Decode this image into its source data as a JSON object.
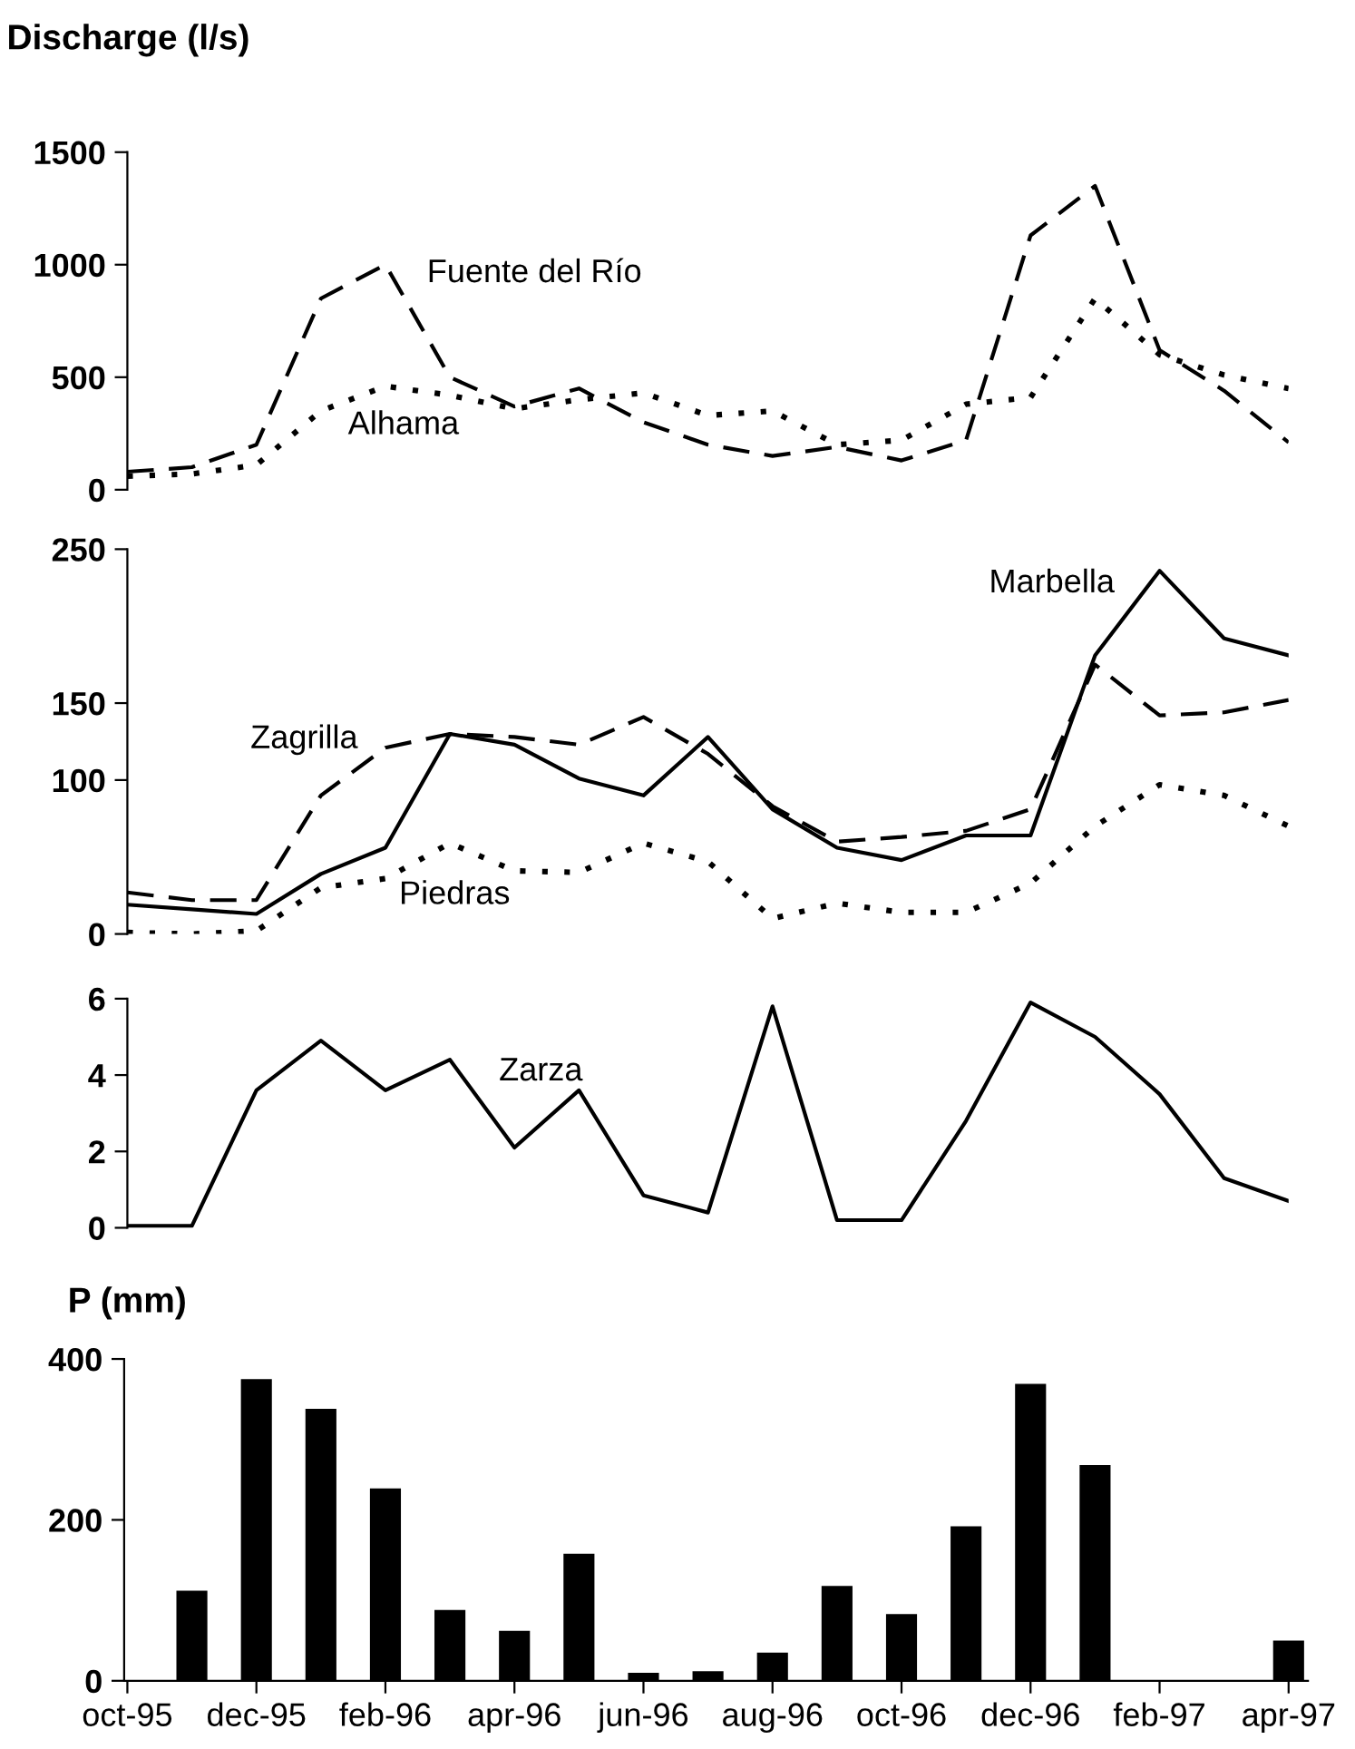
{
  "chart_data": [
    {
      "type": "line",
      "ylabel": "Discharge (l/s)",
      "categories": [
        null,
        null,
        null,
        null,
        null,
        null,
        null,
        null,
        null,
        null,
        null,
        null,
        null,
        null,
        null,
        null,
        null,
        null,
        null
      ],
      "ylim": [
        0,
        1500
      ],
      "yticks": [
        0,
        500,
        1000,
        1500
      ],
      "tick_labels": "y",
      "legend": false,
      "grid": false,
      "marker": "none",
      "series": [
        {
          "name": "Fuente del Río",
          "color": "#000000",
          "line_style": "dashed",
          "values": [
            80,
            100,
            200,
            850,
            1000,
            500,
            370,
            450,
            300,
            200,
            150,
            190,
            130,
            220,
            1130,
            1350,
            620,
            440,
            210
          ]
        },
        {
          "name": "Alhama",
          "color": "#000000",
          "line_style": "dotted",
          "values": [
            60,
            70,
            110,
            350,
            460,
            420,
            360,
            400,
            430,
            330,
            350,
            200,
            220,
            380,
            410,
            850,
            600,
            510,
            450
          ]
        }
      ]
    },
    {
      "type": "line",
      "categories": [
        null,
        null,
        null,
        null,
        null,
        null,
        null,
        null,
        null,
        null,
        null,
        null,
        null,
        null,
        null,
        null,
        null,
        null,
        null
      ],
      "ylim": [
        0,
        250
      ],
      "yticks": [
        0,
        100,
        150,
        250
      ],
      "tick_labels": "y",
      "legend": false,
      "grid": false,
      "marker": "none",
      "series": [
        {
          "name": "Marbella",
          "color": "#000000",
          "line_style": "solid",
          "values": [
            19,
            16,
            13,
            39,
            56,
            130,
            123,
            101,
            90,
            128,
            81,
            56,
            48,
            64,
            64,
            181,
            236,
            192,
            181
          ]
        },
        {
          "name": "Zagrilla",
          "color": "#000000",
          "line_style": "dashed",
          "values": [
            27,
            22,
            22,
            90,
            121,
            130,
            128,
            123,
            141,
            117,
            83,
            60,
            63,
            67,
            81,
            175,
            142,
            144,
            152
          ]
        },
        {
          "name": "Piedras",
          "color": "#000000",
          "line_style": "dotted",
          "values": [
            1,
            0,
            2,
            30,
            36,
            59,
            41,
            40,
            59,
            47,
            10,
            20,
            14,
            14,
            33,
            70,
            97,
            90,
            70
          ]
        }
      ]
    },
    {
      "type": "line",
      "categories": [
        null,
        null,
        null,
        null,
        null,
        null,
        null,
        null,
        null,
        null,
        null,
        null,
        null,
        null,
        null,
        null,
        null,
        null,
        null
      ],
      "ylim": [
        0,
        6
      ],
      "yticks": [
        0,
        2,
        4,
        6
      ],
      "tick_labels": "y",
      "legend": false,
      "grid": false,
      "marker": "none",
      "series": [
        {
          "name": "Zarza",
          "color": "#000000",
          "line_style": "solid",
          "values": [
            0.05,
            0.05,
            3.6,
            4.9,
            3.6,
            4.4,
            2.1,
            3.6,
            0.85,
            0.4,
            5.8,
            0.2,
            0.2,
            2.8,
            5.9,
            5.0,
            3.5,
            1.3,
            0.7
          ]
        }
      ]
    },
    {
      "type": "bar",
      "ylabel": "P (mm)",
      "categories": [
        "oct-95",
        null,
        "dec-95",
        null,
        "feb-96",
        null,
        "apr-96",
        null,
        "jun-96",
        null,
        "aug-96",
        null,
        "oct-96",
        null,
        "dec-96",
        null,
        "feb-97",
        null,
        "apr-97"
      ],
      "ylim": [
        0,
        400
      ],
      "yticks": [
        0,
        200,
        400
      ],
      "legend": false,
      "grid": false,
      "series": [
        {
          "color": "#000000",
          "values": [
            0,
            112,
            375,
            338,
            239,
            88,
            62,
            158,
            10,
            12,
            35,
            118,
            83,
            192,
            369,
            268,
            0,
            0,
            50
          ]
        }
      ]
    }
  ]
}
